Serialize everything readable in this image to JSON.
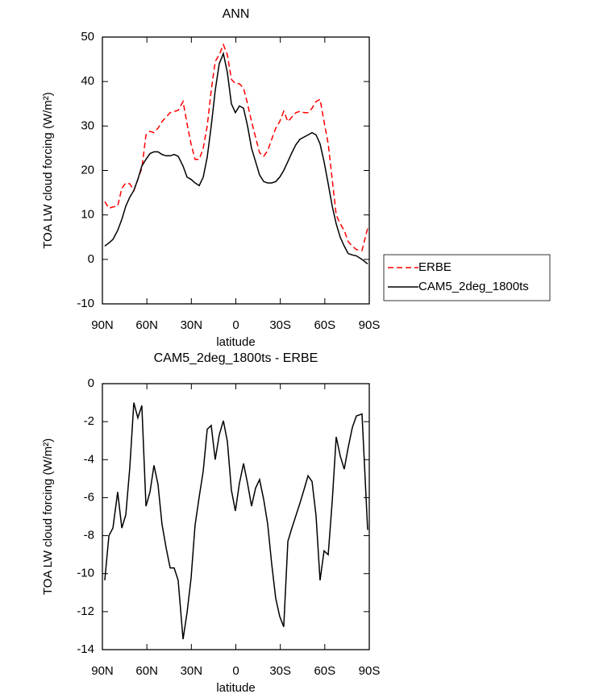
{
  "chart_data": [
    {
      "type": "line",
      "title": "ANN",
      "xlabel": "latitude",
      "ylabel": "TOA LW cloud forcing (W/m²)",
      "x": [
        88.4,
        85.6,
        82.9,
        79.7,
        76.9,
        74.2,
        71.5,
        68.8,
        66.1,
        63.4,
        60.6,
        57.9,
        55.2,
        52.5,
        49.8,
        47.0,
        44.3,
        41.6,
        38.9,
        35.6,
        32.9,
        30.2,
        27.5,
        24.7,
        22.0,
        19.3,
        16.6,
        13.9,
        11.2,
        8.4,
        5.7,
        3.0,
        0.3,
        -2.4,
        -5.2,
        -7.9,
        -10.6,
        -13.3,
        -16.0,
        -18.8,
        -21.5,
        -24.2,
        -26.9,
        -29.6,
        -32.3,
        -35.1,
        -37.8,
        -40.5,
        -43.2,
        -45.9,
        -48.7,
        -51.4,
        -54.1,
        -56.8,
        -59.5,
        -62.3,
        -65.0,
        -67.7,
        -70.4,
        -73.1,
        -75.8,
        -78.6,
        -81.3,
        -85.1,
        -88.9
      ],
      "series": [
        {
          "name": "ERBE",
          "color": "#ff0000",
          "dash": "dashed",
          "values": [
            13,
            11.5,
            11.8,
            12,
            16,
            17.2,
            17,
            15.5,
            18,
            20.5,
            28,
            28.8,
            28.5,
            29.5,
            31,
            32,
            33,
            33.3,
            33.5,
            35.5,
            30.5,
            26,
            22.5,
            22.5,
            25,
            30,
            38,
            44.5,
            46,
            48.3,
            46,
            40.5,
            39.5,
            39.5,
            38.5,
            35,
            31,
            27.5,
            24,
            23.2,
            24.5,
            27,
            29.5,
            31,
            33.3,
            31,
            32,
            33,
            33.3,
            33,
            33,
            34,
            35.5,
            36,
            31,
            26,
            18,
            10,
            8,
            6.5,
            4,
            3,
            2.2,
            2,
            7
          ]
        },
        {
          "name": "CAM5_2deg_1800ts",
          "color": "#000000",
          "dash": "solid",
          "values": [
            3,
            3.7,
            4.5,
            6.5,
            9,
            12,
            14,
            15.5,
            18,
            21,
            22.5,
            23.8,
            24.2,
            24.2,
            23.6,
            23.3,
            23.3,
            23.6,
            23.2,
            21,
            18.5,
            18,
            17.2,
            16.6,
            18.5,
            23,
            30,
            38,
            44,
            46.3,
            42,
            35,
            33,
            34.5,
            34,
            30,
            25,
            22,
            19,
            17.5,
            17.2,
            17.2,
            17.5,
            18.5,
            20,
            22,
            24,
            25.8,
            27,
            27.5,
            28,
            28.5,
            28,
            26,
            22,
            17,
            12,
            8,
            5,
            3,
            1.3,
            1,
            0.8,
            0,
            -1
          ]
        }
      ],
      "xlim": [
        90,
        -90
      ],
      "xticks": [
        {
          "value": 90,
          "label": "90N"
        },
        {
          "value": 60,
          "label": "60N"
        },
        {
          "value": 30,
          "label": "30N"
        },
        0,
        {
          "value": -30,
          "label": "30S"
        },
        {
          "value": -60,
          "label": "60S"
        },
        {
          "value": -90,
          "label": "90S"
        }
      ],
      "ylim": [
        -10,
        50
      ],
      "yticks": [
        -10,
        0,
        10,
        20,
        30,
        40,
        50
      ],
      "legend": "right"
    },
    {
      "type": "line",
      "title": "CAM5_2deg_1800ts - ERBE",
      "xlabel": "latitude",
      "ylabel": "TOA LW cloud forcing (W/m²)",
      "x": [
        88.4,
        85.6,
        82.9,
        79.7,
        76.9,
        74.2,
        71.5,
        68.8,
        66.1,
        63.4,
        60.6,
        57.9,
        55.2,
        52.5,
        49.8,
        47.0,
        44.3,
        41.6,
        38.9,
        35.6,
        32.9,
        30.2,
        27.5,
        24.7,
        22.0,
        19.3,
        16.6,
        13.9,
        11.2,
        8.4,
        5.7,
        3.0,
        0.3,
        -2.4,
        -5.2,
        -7.9,
        -10.6,
        -13.3,
        -16.0,
        -18.8,
        -21.5,
        -24.2,
        -26.9,
        -29.6,
        -32.3,
        -35.1,
        -37.8,
        -40.5,
        -43.2,
        -45.9,
        -48.7,
        -51.4,
        -54.1,
        -56.8,
        -59.5,
        -62.3,
        -65.0,
        -67.7,
        -70.4,
        -73.1,
        -75.8,
        -78.6,
        -81.3,
        -85.1,
        -88.9
      ],
      "series": [
        {
          "color": "#000000",
          "dash": "solid",
          "values": [
            -10.35,
            -8.0,
            -7.6,
            -5.7,
            -7.6,
            -6.9,
            -4.4,
            -1.0,
            -1.8,
            -1.15,
            -6.45,
            -5.7,
            -4.3,
            -5.3,
            -7.4,
            -8.65,
            -9.7,
            -9.7,
            -10.35,
            -13.45,
            -12.05,
            -10.25,
            -7.45,
            -5.95,
            -4.6,
            -2.4,
            -2.2,
            -4.0,
            -2.7,
            -1.95,
            -3.05,
            -5.6,
            -6.7,
            -5.25,
            -4.2,
            -5.25,
            -6.45,
            -5.5,
            -5.05,
            -6.1,
            -7.4,
            -9.5,
            -11.3,
            -12.25,
            -12.8,
            -8.3,
            -7.6,
            -6.95,
            -6.3,
            -5.6,
            -4.85,
            -5.15,
            -6.95,
            -10.35,
            -8.8,
            -9.0,
            -6.2,
            -2.8,
            -3.8,
            -4.5,
            -3.35,
            -2.3,
            -1.7,
            -1.6,
            -7.7
          ]
        }
      ],
      "xlim": [
        90,
        -90
      ],
      "xticks": [
        {
          "value": 90,
          "label": "90N"
        },
        {
          "value": 60,
          "label": "60N"
        },
        {
          "value": 30,
          "label": "30N"
        },
        0,
        {
          "value": -30,
          "label": "30S"
        },
        {
          "value": -60,
          "label": "60S"
        },
        {
          "value": -90,
          "label": "90S"
        }
      ],
      "ylim": [
        -14,
        0
      ],
      "yticks": [
        -14,
        -12,
        -10,
        -8,
        -6,
        -4,
        -2,
        0
      ]
    }
  ]
}
